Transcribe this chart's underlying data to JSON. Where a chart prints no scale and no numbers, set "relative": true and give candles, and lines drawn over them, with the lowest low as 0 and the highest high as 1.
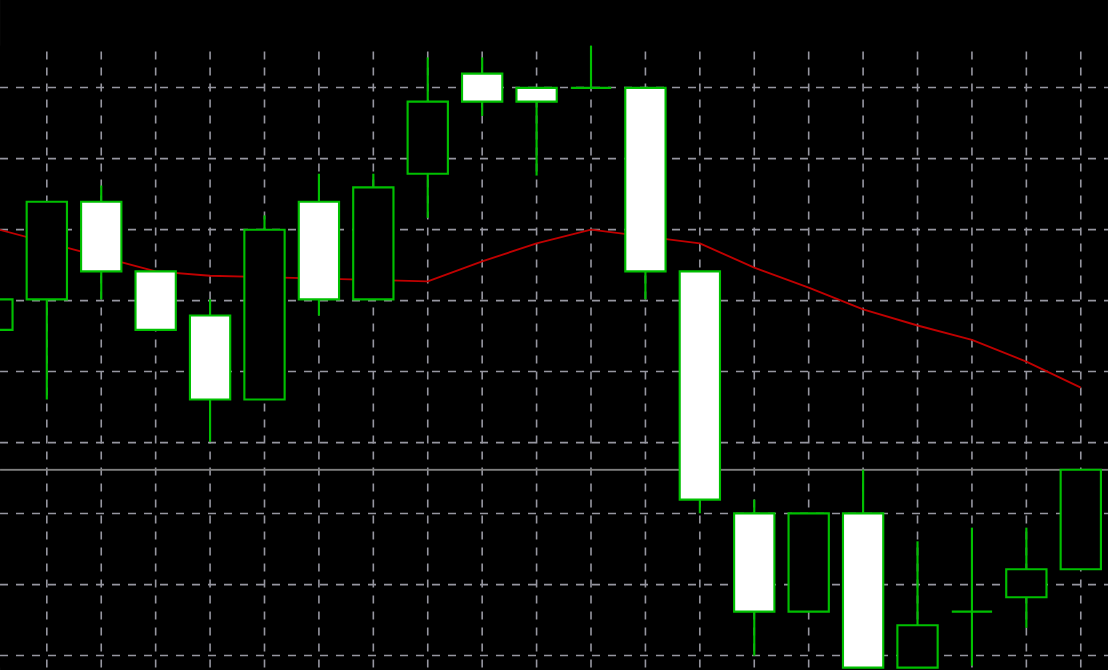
{
  "chart_data": {
    "type": "candlestick",
    "relative": true,
    "grid": true,
    "categories": [
      null,
      null,
      null,
      null,
      null,
      null,
      null,
      null,
      null,
      null,
      null,
      null,
      null,
      null,
      null,
      null,
      null,
      null,
      null,
      null,
      null
    ],
    "series": [
      {
        "type": "candlestick",
        "color": "#00c000",
        "ohlc": [
          [
            0.543,
            0.592,
            0.543,
            0.592
          ],
          [
            0.592,
            0.749,
            0.431,
            0.749
          ],
          [
            0.749,
            0.775,
            0.592,
            0.637
          ],
          [
            0.637,
            0.637,
            0.543,
            0.543
          ],
          [
            0.566,
            0.592,
            0.363,
            0.431
          ],
          [
            0.431,
            0.727,
            0.431,
            0.704
          ],
          [
            0.749,
            0.794,
            0.566,
            0.592
          ],
          [
            0.592,
            0.794,
            0.592,
            0.772
          ],
          [
            0.794,
            0.981,
            0.723,
            0.91
          ],
          [
            0.955,
            0.981,
            0.887,
            0.91
          ],
          [
            0.932,
            0.932,
            0.791,
            0.91
          ],
          [
            0.932,
            1.0,
            0.932,
            0.932
          ],
          [
            0.932,
            0.932,
            0.592,
            0.637
          ],
          [
            0.637,
            0.637,
            0.248,
            0.27
          ],
          [
            0.248,
            0.27,
            0.019,
            0.09
          ],
          [
            0.09,
            0.248,
            0.09,
            0.248
          ],
          [
            0.248,
            0.318,
            0,
            0
          ],
          [
            0,
            0.203,
            0,
            0.068
          ],
          [
            0.09,
            0.225,
            0.003,
            0.09
          ],
          [
            0.113,
            0.225,
            0.064,
            0.158
          ],
          [
            0.158,
            0.318,
            0.158,
            0.318
          ]
        ]
      },
      {
        "type": "line",
        "color": "#c00000",
        "values": [
          0.707,
          null,
          null,
          0.637,
          0.63,
          null,
          null,
          null,
          0.621,
          0.653,
          0.682,
          0.704,
          null,
          0.682,
          0.643,
          0.611,
          0.576,
          0.55,
          0.527,
          0.492,
          0.45
        ]
      }
    ],
    "ref_lines": [
      {
        "axis": "y",
        "value": 0.318,
        "color": "#808080"
      }
    ]
  }
}
